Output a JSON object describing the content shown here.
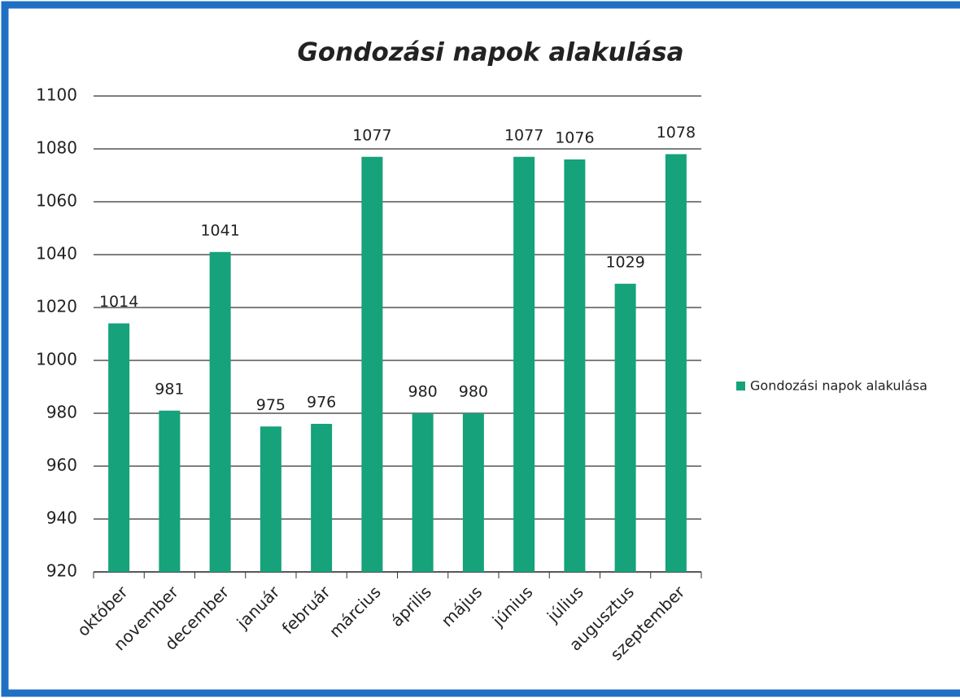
{
  "chart_data": {
    "type": "bar",
    "title": "Gondozási napok alakulása",
    "categories": [
      "október",
      "november",
      "december",
      "január",
      "február",
      "március",
      "április",
      "május",
      "június",
      "július",
      "augusztus",
      "szeptember"
    ],
    "series": [
      {
        "name": "Gondozási napok alakulása",
        "color": "#16a27a",
        "values": [
          1014,
          981,
          1041,
          975,
          976,
          1077,
          980,
          980,
          1077,
          1076,
          1029,
          1078
        ]
      }
    ],
    "ylim": [
      920,
      1100
    ],
    "yticks": [
      920,
      940,
      960,
      980,
      1000,
      1020,
      1040,
      1060,
      1080,
      1100
    ],
    "grid": true,
    "legend": "right"
  }
}
